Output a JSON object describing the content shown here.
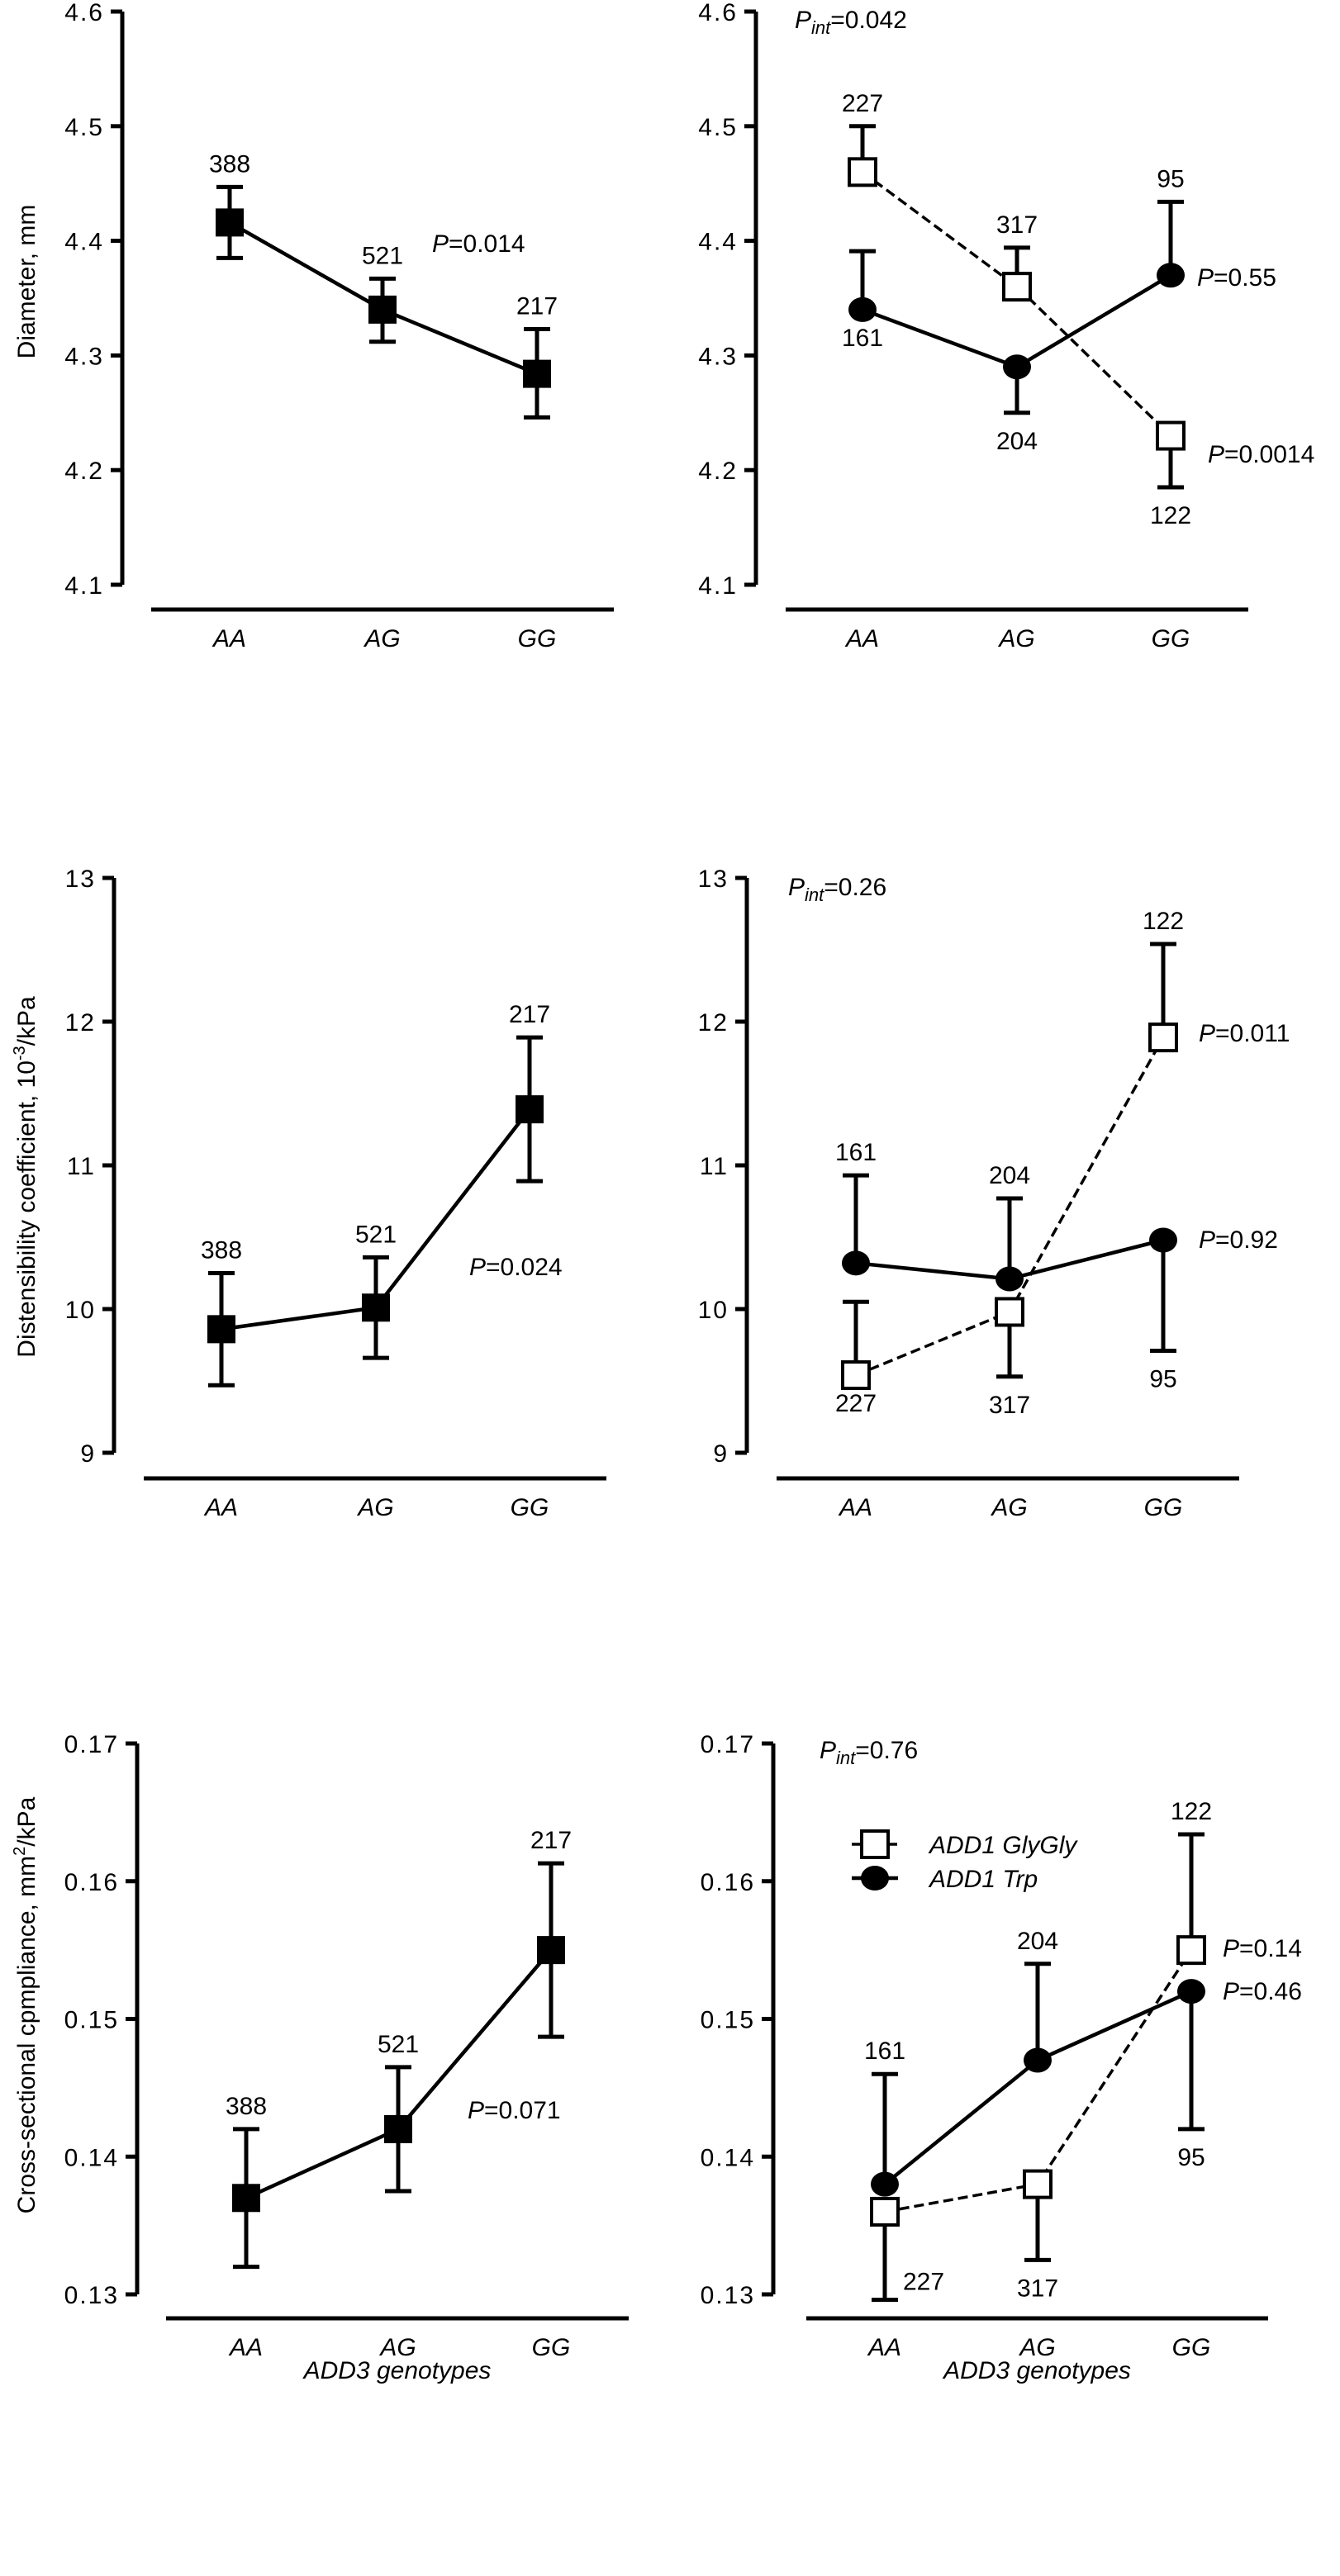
{
  "chart_data": [
    {
      "type": "line",
      "ylabel": "Diameter, mm",
      "xlabel": "",
      "categories": [
        "AA",
        "AG",
        "GG"
      ],
      "ylim": [
        4.1,
        4.6
      ],
      "yticks": [
        "4.1",
        "4.2",
        "4.3",
        "4.4",
        "4.5",
        "4.6"
      ],
      "ytick_values": [
        4.1,
        4.2,
        4.3,
        4.4,
        4.5,
        4.6
      ],
      "annotations": [
        {
          "text_italic": "P",
          "text": "=0.014"
        }
      ],
      "series": [
        {
          "marker": "filled-square",
          "line": "solid",
          "points": [
            {
              "y": 4.416,
              "err_low": 4.385,
              "err_high": 4.447,
              "n": "388",
              "label_side": "above"
            },
            {
              "y": 4.34,
              "err_low": 4.312,
              "err_high": 4.367,
              "n": "521",
              "label_side": "above"
            },
            {
              "y": 4.284,
              "err_low": 4.246,
              "err_high": 4.323,
              "n": "217",
              "label_side": "above"
            }
          ]
        }
      ]
    },
    {
      "type": "line",
      "ylabel": "",
      "xlabel": "",
      "categories": [
        "AA",
        "AG",
        "GG"
      ],
      "ylim": [
        4.1,
        4.6
      ],
      "yticks": [
        "4.1",
        "4.2",
        "4.3",
        "4.4",
        "4.5",
        "4.6"
      ],
      "ytick_values": [
        4.1,
        4.2,
        4.3,
        4.4,
        4.5,
        4.6
      ],
      "interaction": {
        "text_italic": "P",
        "sub": "int",
        "text": "=0.042"
      },
      "annotations": [
        {
          "text_italic": "P",
          "text": "=0.55"
        },
        {
          "text_italic": "P",
          "text": "=0.0014"
        }
      ],
      "series": [
        {
          "name": "ADD1 GlyGly",
          "marker": "open-square",
          "line": "dashed",
          "points": [
            {
              "y": 4.46,
              "err_high": 4.5,
              "n": "227",
              "label_side": "above"
            },
            {
              "y": 4.36,
              "err_high": 4.394,
              "n": "317",
              "label_side": "above"
            },
            {
              "y": 4.23,
              "err_low": 4.185,
              "n": "122",
              "label_side": "below"
            }
          ]
        },
        {
          "name": "ADD1 Trp",
          "marker": "filled-circle",
          "line": "solid",
          "points": [
            {
              "y": 4.34,
              "err_high": 4.391,
              "n": "161",
              "label_side": "below"
            },
            {
              "y": 4.29,
              "err_low": 4.25,
              "n": "204",
              "label_side": "below"
            },
            {
              "y": 4.37,
              "err_high": 4.434,
              "n": "95",
              "label_side": "above"
            }
          ]
        }
      ]
    },
    {
      "type": "line",
      "ylabel": "Distensibility coefficient, 10",
      "ylabel_sup": "-3",
      "ylabel_tail": "/kPa",
      "xlabel": "",
      "categories": [
        "AA",
        "AG",
        "GG"
      ],
      "ylim": [
        9,
        13
      ],
      "yticks": [
        "9",
        "10",
        "11",
        "12",
        "13"
      ],
      "ytick_values": [
        9,
        10,
        11,
        12,
        13
      ],
      "annotations": [
        {
          "text_italic": "P",
          "text": "=0.024"
        }
      ],
      "series": [
        {
          "marker": "filled-square",
          "line": "solid",
          "points": [
            {
              "y": 9.86,
              "err_low": 9.47,
              "err_high": 10.25,
              "n": "388",
              "label_side": "above"
            },
            {
              "y": 10.01,
              "err_low": 9.66,
              "err_high": 10.36,
              "n": "521",
              "label_side": "above"
            },
            {
              "y": 11.39,
              "err_low": 10.89,
              "err_high": 11.89,
              "n": "217",
              "label_side": "above"
            }
          ]
        }
      ]
    },
    {
      "type": "line",
      "ylabel": "",
      "xlabel": "",
      "categories": [
        "AA",
        "AG",
        "GG"
      ],
      "ylim": [
        9,
        13
      ],
      "yticks": [
        "9",
        "10",
        "11",
        "12",
        "13"
      ],
      "ytick_values": [
        9,
        10,
        11,
        12,
        13
      ],
      "interaction": {
        "text_italic": "P",
        "sub": "int",
        "text": "=0.26"
      },
      "annotations": [
        {
          "text_italic": "P",
          "text": "=0.011"
        },
        {
          "text_italic": "P",
          "text": "=0.92"
        }
      ],
      "series": [
        {
          "name": "ADD1 GlyGly",
          "marker": "open-square",
          "line": "dashed",
          "points": [
            {
              "y": 9.54,
              "err_high": 10.05,
              "n": "227",
              "label_side": "below"
            },
            {
              "y": 9.98,
              "err_low": 9.53,
              "n": "317",
              "label_side": "below"
            },
            {
              "y": 11.89,
              "err_high": 12.54,
              "n": "122",
              "label_side": "above"
            }
          ]
        },
        {
          "name": "ADD1 Trp",
          "marker": "filled-circle",
          "line": "solid",
          "points": [
            {
              "y": 10.32,
              "err_high": 10.93,
              "n": "161",
              "label_side": "above"
            },
            {
              "y": 10.21,
              "err_high": 10.77,
              "n": "204",
              "label_side": "above"
            },
            {
              "y": 10.48,
              "err_low": 9.71,
              "n": "95",
              "label_side": "below"
            }
          ]
        }
      ]
    },
    {
      "type": "line",
      "ylabel": "Cross-sectional cpmpliance, mm",
      "ylabel_sup": "2",
      "ylabel_tail": "/kPa",
      "xlabel": "ADD3 genotypes",
      "categories": [
        "AA",
        "AG",
        "GG"
      ],
      "ylim": [
        0.13,
        0.17
      ],
      "yticks": [
        "0.13",
        "0.14",
        "0.15",
        "0.16",
        "0.17"
      ],
      "ytick_values": [
        0.13,
        0.14,
        0.15,
        0.16,
        0.17
      ],
      "annotations": [
        {
          "text_italic": "P",
          "text": "=0.071"
        }
      ],
      "series": [
        {
          "marker": "filled-square",
          "line": "solid",
          "points": [
            {
              "y": 0.137,
              "err_low": 0.132,
              "err_high": 0.142,
              "n": "388",
              "label_side": "above"
            },
            {
              "y": 0.142,
              "err_low": 0.1375,
              "err_high": 0.1465,
              "n": "521",
              "label_side": "above"
            },
            {
              "y": 0.155,
              "err_low": 0.1487,
              "err_high": 0.1613,
              "n": "217",
              "label_side": "above"
            }
          ]
        }
      ]
    },
    {
      "type": "line",
      "ylabel": "",
      "xlabel": "ADD3 genotypes",
      "categories": [
        "AA",
        "AG",
        "GG"
      ],
      "ylim": [
        0.13,
        0.17
      ],
      "yticks": [
        "0.13",
        "0.14",
        "0.15",
        "0.16",
        "0.17"
      ],
      "ytick_values": [
        0.13,
        0.14,
        0.15,
        0.16,
        0.17
      ],
      "interaction": {
        "text_italic": "P",
        "sub": "int",
        "text": "=0.76"
      },
      "legend": {
        "placement": "top-left",
        "items": [
          "ADD1 GlyGly",
          "ADD1 Trp"
        ]
      },
      "annotations": [
        {
          "text_italic": "P",
          "text": "=0.14"
        },
        {
          "text_italic": "P",
          "text": "=0.46"
        }
      ],
      "series": [
        {
          "name": "ADD1 GlyGly",
          "marker": "open-square",
          "line": "dashed",
          "points": [
            {
              "y": 0.136,
              "err_low": 0.1296,
              "n": "227",
              "label_side": "below-right"
            },
            {
              "y": 0.138,
              "err_low": 0.1325,
              "n": "317",
              "label_side": "below"
            },
            {
              "y": 0.155,
              "err_high": 0.1634,
              "n": "122",
              "label_side": "above"
            }
          ]
        },
        {
          "name": "ADD1 Trp",
          "marker": "filled-circle",
          "line": "solid",
          "points": [
            {
              "y": 0.138,
              "err_high": 0.146,
              "n": "161",
              "label_side": "above"
            },
            {
              "y": 0.147,
              "err_high": 0.154,
              "n": "204",
              "label_side": "above"
            },
            {
              "y": 0.152,
              "err_low": 0.142,
              "n": "95",
              "label_side": "below"
            }
          ]
        }
      ]
    }
  ]
}
